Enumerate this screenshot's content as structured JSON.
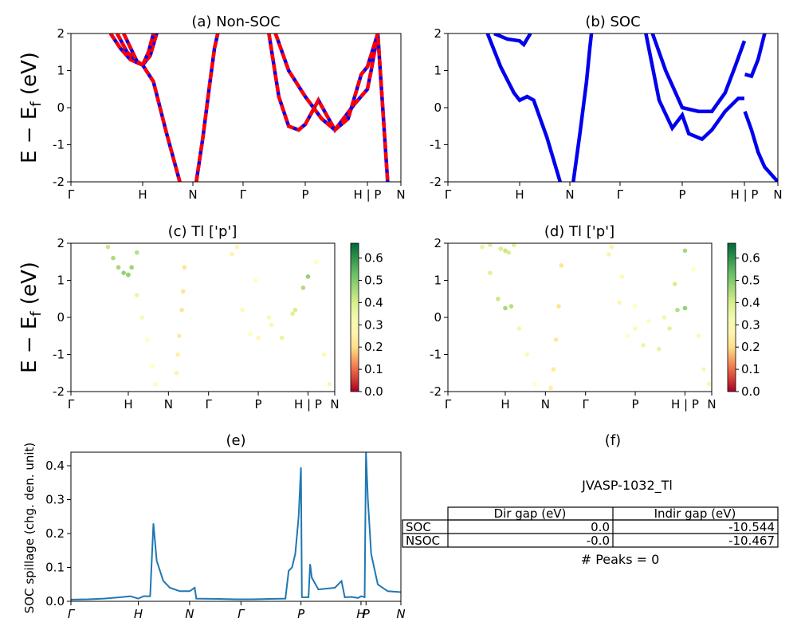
{
  "figure_id": "JVASP-1032_Tl",
  "panels": {
    "a": {
      "title": "(a) Non-SOC"
    },
    "b": {
      "title": "(b) SOC"
    },
    "c": {
      "title": "(c)  Tl ['p']"
    },
    "d": {
      "title": "(d) Tl ['p']"
    },
    "e": {
      "title": "(e)",
      "ylabel": "SOC spillage (chg. den. unit)"
    },
    "f": {
      "title": "(f)"
    }
  },
  "band_ylabel": "E − E",
  "band_ylabel_sub": "f",
  "band_ylabel_unit": " (eV)",
  "gap_table": {
    "headers": [
      "",
      "Dir gap (eV)",
      "Indir gap (eV)"
    ],
    "rows": [
      {
        "label": "SOC",
        "dir": "0.0",
        "indir": "-10.544"
      },
      {
        "label": "NSOC",
        "dir": "-0.0",
        "indir": "-10.467"
      }
    ],
    "footer": "# Peaks = 0"
  },
  "colors": {
    "nonsoc_red": "#ff0000",
    "nonsoc_blue": "#0000ff",
    "soc_blue": "#0000ee",
    "spillage_line": "#1f77b4"
  },
  "chart_data": [
    {
      "type": "line",
      "panel": "a",
      "ylim": [
        -2,
        2
      ],
      "yticks": [
        -2,
        -1,
        0,
        1,
        2
      ],
      "kpath": [
        "Γ",
        "H",
        "N",
        "Γ",
        "P",
        "H | P",
        "N"
      ],
      "kpos": [
        0,
        0.2174,
        0.3696,
        0.5217,
        0.7101,
        0.8986,
        1.0
      ],
      "series": [
        {
          "x": [
            0.12,
            0.15,
            0.18,
            0.2174,
            0.24,
            0.26
          ],
          "y": [
            2.0,
            1.6,
            1.3,
            1.15,
            1.4,
            2.0
          ]
        },
        {
          "x": [
            0.14,
            0.17,
            0.2,
            0.2174,
            0.235,
            0.25
          ],
          "y": [
            2.0,
            1.5,
            1.25,
            1.15,
            1.5,
            2.0
          ]
        },
        {
          "x": [
            0.16,
            0.2,
            0.2174,
            0.25,
            0.29,
            0.33
          ],
          "y": [
            2.0,
            1.25,
            1.15,
            0.7,
            -0.7,
            -2.0
          ]
        },
        {
          "x": [
            0.38,
            0.4,
            0.42,
            0.435,
            0.445
          ],
          "y": [
            -2.0,
            -0.8,
            0.6,
            1.6,
            2.0
          ]
        },
        {
          "x": [
            0.6,
            0.63,
            0.66,
            0.69,
            0.7101,
            0.75,
            0.8,
            0.86,
            0.8986,
            0.91,
            0.93
          ],
          "y": [
            2.0,
            0.3,
            -0.5,
            -0.6,
            -0.45,
            0.2,
            -0.6,
            0.1,
            0.5,
            1.0,
            2.0
          ]
        },
        {
          "x": [
            0.62,
            0.66,
            0.7101,
            0.76,
            0.8,
            0.84,
            0.88,
            0.8986,
            0.93,
            0.96
          ],
          "y": [
            2.0,
            1.0,
            0.3,
            -0.3,
            -0.6,
            -0.3,
            0.9,
            1.1,
            2.0,
            -2.0
          ]
        }
      ]
    },
    {
      "type": "line",
      "panel": "b",
      "ylim": [
        -2,
        2
      ],
      "yticks": [
        -2,
        -1,
        0,
        1,
        2
      ],
      "kpath": [
        "Γ",
        "H",
        "N",
        "Γ",
        "P",
        "H | P",
        "N"
      ],
      "kpos": [
        0,
        0.2174,
        0.3696,
        0.5217,
        0.7101,
        0.8986,
        1.0
      ],
      "series": [
        {
          "x": [
            0.12,
            0.16,
            0.2,
            0.2174,
            0.24,
            0.26,
            0.3,
            0.34
          ],
          "y": [
            2.0,
            1.1,
            0.4,
            0.2,
            0.3,
            0.2,
            -0.8,
            -2.0
          ]
        },
        {
          "x": [
            0.14,
            0.18,
            0.2174,
            0.23,
            0.25
          ],
          "y": [
            2.0,
            1.85,
            1.8,
            1.7,
            2.0
          ]
        },
        {
          "x": [
            0.38,
            0.4,
            0.42,
            0.43,
            0.435
          ],
          "y": [
            -2.0,
            -0.7,
            0.7,
            1.6,
            2.0
          ]
        },
        {
          "x": [
            0.6,
            0.64,
            0.68,
            0.7101,
            0.73,
            0.77,
            0.8,
            0.84,
            0.88,
            0.8986
          ],
          "y": [
            2.0,
            0.2,
            -0.55,
            -0.2,
            -0.7,
            -0.85,
            -0.6,
            -0.1,
            0.25,
            0.25
          ]
        },
        {
          "x": [
            0.62,
            0.66,
            0.7101,
            0.76,
            0.8,
            0.84,
            0.87,
            0.8986
          ],
          "y": [
            2.0,
            1.0,
            0.0,
            -0.1,
            -0.1,
            0.4,
            1.1,
            1.8
          ]
        },
        {
          "x": [
            0.9,
            0.92,
            0.94,
            0.96,
            1.0
          ],
          "y": [
            -0.1,
            -0.6,
            -1.2,
            -1.6,
            -2.0
          ]
        },
        {
          "x": [
            0.9,
            0.92,
            0.94,
            0.96
          ],
          "y": [
            0.9,
            0.85,
            1.3,
            2.0
          ]
        }
      ]
    },
    {
      "type": "scatter",
      "panel": "c",
      "ylim": [
        -2,
        2
      ],
      "yticks": [
        -2,
        -1,
        0,
        1,
        2
      ],
      "kpath": [
        "Γ",
        "H",
        "N",
        "Γ",
        "P",
        "H | P",
        "N"
      ],
      "kpos": [
        0,
        0.2174,
        0.3696,
        0.5217,
        0.7101,
        0.8986,
        1.0
      ],
      "colorbar": {
        "min": 0.0,
        "max": 0.6667,
        "ticks": [
          0.0,
          0.1,
          0.2,
          0.3,
          0.4,
          0.5,
          0.6
        ]
      },
      "points": [
        [
          0.14,
          1.9,
          0.42
        ],
        [
          0.16,
          1.6,
          0.45
        ],
        [
          0.18,
          1.35,
          0.46
        ],
        [
          0.2,
          1.2,
          0.48
        ],
        [
          0.2174,
          1.15,
          0.5
        ],
        [
          0.23,
          1.35,
          0.47
        ],
        [
          0.25,
          1.75,
          0.44
        ],
        [
          0.2174,
          1.15,
          0.48
        ],
        [
          0.25,
          0.6,
          0.35
        ],
        [
          0.27,
          0.0,
          0.32
        ],
        [
          0.29,
          -0.6,
          0.3
        ],
        [
          0.31,
          -1.3,
          0.3
        ],
        [
          0.32,
          -1.8,
          0.29
        ],
        [
          0.4,
          -1.5,
          0.26
        ],
        [
          0.405,
          -1.0,
          0.25
        ],
        [
          0.41,
          -0.5,
          0.24
        ],
        [
          0.42,
          0.2,
          0.22
        ],
        [
          0.425,
          0.7,
          0.22
        ],
        [
          0.43,
          1.35,
          0.22
        ],
        [
          0.61,
          1.7,
          0.26
        ],
        [
          0.65,
          0.2,
          0.28
        ],
        [
          0.68,
          -0.45,
          0.3
        ],
        [
          0.7101,
          -0.55,
          0.28
        ],
        [
          0.75,
          0.0,
          0.32
        ],
        [
          0.8,
          -0.55,
          0.36
        ],
        [
          0.85,
          0.2,
          0.4
        ],
        [
          0.88,
          0.8,
          0.45
        ],
        [
          0.8986,
          1.1,
          0.48
        ],
        [
          0.63,
          1.9,
          0.27
        ],
        [
          0.7,
          1.0,
          0.3
        ],
        [
          0.76,
          -0.2,
          0.33
        ],
        [
          0.84,
          0.1,
          0.38
        ],
        [
          0.93,
          1.5,
          0.3
        ],
        [
          0.96,
          -1.0,
          0.28
        ],
        [
          0.98,
          -1.8,
          0.27
        ]
      ]
    },
    {
      "type": "scatter",
      "panel": "d",
      "ylim": [
        -2,
        2
      ],
      "yticks": [
        -2,
        -1,
        0,
        1,
        2
      ],
      "kpath": [
        "Γ",
        "H",
        "N",
        "Γ",
        "P",
        "H | P",
        "N"
      ],
      "kpos": [
        0,
        0.2174,
        0.3696,
        0.5217,
        0.7101,
        0.8986,
        1.0
      ],
      "colorbar": {
        "min": 0.0,
        "max": 0.6667,
        "ticks": [
          0.0,
          0.1,
          0.2,
          0.3,
          0.4,
          0.5,
          0.6
        ]
      },
      "points": [
        [
          0.13,
          1.9,
          0.36
        ],
        [
          0.16,
          1.2,
          0.38
        ],
        [
          0.19,
          0.5,
          0.42
        ],
        [
          0.2174,
          0.25,
          0.46
        ],
        [
          0.24,
          0.3,
          0.44
        ],
        [
          0.27,
          -0.3,
          0.34
        ],
        [
          0.3,
          -1.0,
          0.32
        ],
        [
          0.33,
          -1.8,
          0.3
        ],
        [
          0.16,
          1.95,
          0.38
        ],
        [
          0.2,
          1.85,
          0.4
        ],
        [
          0.2174,
          1.8,
          0.42
        ],
        [
          0.23,
          1.75,
          0.4
        ],
        [
          0.25,
          1.95,
          0.38
        ],
        [
          0.39,
          -1.9,
          0.25
        ],
        [
          0.4,
          -1.4,
          0.24
        ],
        [
          0.41,
          -0.6,
          0.23
        ],
        [
          0.42,
          0.3,
          0.22
        ],
        [
          0.43,
          1.4,
          0.22
        ],
        [
          0.61,
          1.7,
          0.26
        ],
        [
          0.65,
          0.4,
          0.27
        ],
        [
          0.68,
          -0.5,
          0.3
        ],
        [
          0.7101,
          -0.3,
          0.32
        ],
        [
          0.74,
          -0.75,
          0.35
        ],
        [
          0.8,
          -0.85,
          0.36
        ],
        [
          0.84,
          -0.3,
          0.38
        ],
        [
          0.87,
          0.2,
          0.44
        ],
        [
          0.8986,
          0.25,
          0.48
        ],
        [
          0.62,
          1.9,
          0.26
        ],
        [
          0.66,
          1.1,
          0.28
        ],
        [
          0.7101,
          0.3,
          0.3
        ],
        [
          0.76,
          -0.1,
          0.31
        ],
        [
          0.82,
          0.0,
          0.34
        ],
        [
          0.86,
          0.9,
          0.4
        ],
        [
          0.8986,
          1.8,
          0.46
        ],
        [
          0.93,
          1.3,
          0.3
        ],
        [
          0.95,
          -0.5,
          0.28
        ],
        [
          0.97,
          -1.4,
          0.27
        ],
        [
          0.99,
          -1.8,
          0.27
        ]
      ]
    },
    {
      "type": "line",
      "panel": "e",
      "ylim": [
        0,
        0.44
      ],
      "yticks": [
        0.0,
        0.1,
        0.2,
        0.3,
        0.4
      ],
      "kpath": [
        "Γ",
        "H",
        "N",
        "Γ",
        "P",
        "H",
        "P",
        "N"
      ],
      "kpos": [
        0,
        0.2041,
        0.3597,
        0.5153,
        0.6972,
        0.8791,
        0.8943,
        1.0
      ],
      "x": [
        0,
        0.05,
        0.1,
        0.15,
        0.18,
        0.2041,
        0.22,
        0.24,
        0.25,
        0.26,
        0.28,
        0.3,
        0.33,
        0.36,
        0.375,
        0.38,
        0.45,
        0.5,
        0.55,
        0.6,
        0.65,
        0.66,
        0.67,
        0.68,
        0.69,
        0.6972,
        0.7,
        0.72,
        0.725,
        0.73,
        0.75,
        0.8,
        0.82,
        0.83,
        0.85,
        0.87,
        0.88,
        0.89,
        0.8943,
        0.9,
        0.91,
        0.93,
        0.96,
        1.0
      ],
      "y": [
        0.005,
        0.006,
        0.008,
        0.012,
        0.015,
        0.008,
        0.015,
        0.015,
        0.23,
        0.12,
        0.06,
        0.04,
        0.03,
        0.03,
        0.04,
        0.008,
        0.007,
        0.006,
        0.006,
        0.007,
        0.008,
        0.09,
        0.1,
        0.14,
        0.25,
        0.395,
        0.012,
        0.012,
        0.11,
        0.07,
        0.035,
        0.04,
        0.06,
        0.012,
        0.013,
        0.01,
        0.015,
        0.012,
        0.44,
        0.3,
        0.14,
        0.05,
        0.03,
        0.027
      ]
    }
  ]
}
